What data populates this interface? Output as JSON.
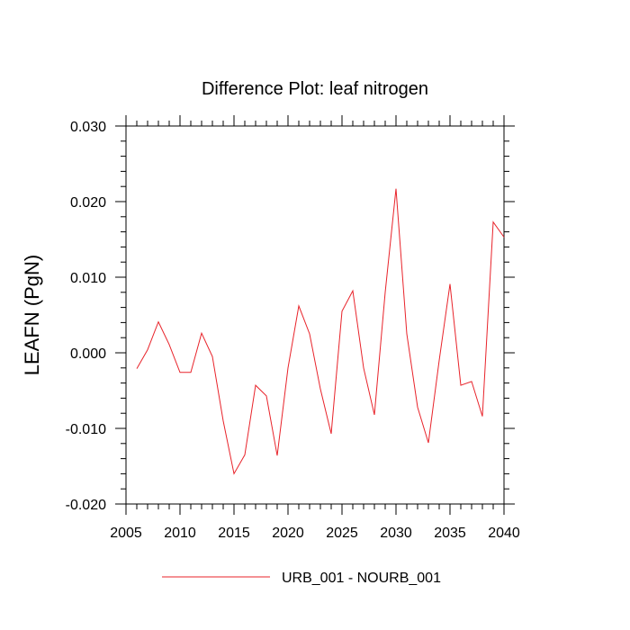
{
  "chart_data": {
    "type": "line",
    "title": "Difference Plot: leaf nitrogen",
    "xlabel": "",
    "ylabel": "LEAFN  (PgN)",
    "xlim": [
      2005,
      2040
    ],
    "ylim": [
      -0.02,
      0.03
    ],
    "x_ticks": [
      "2005",
      "2010",
      "2015",
      "2020",
      "2025",
      "2030",
      "2035",
      "2040"
    ],
    "y_ticks": [
      "-0.020",
      "-0.010",
      "0.000",
      "0.010",
      "0.020",
      "0.030"
    ],
    "grid": false,
    "legend_position": "bottom-center",
    "series": [
      {
        "name": "URB_001 - NOURB_001",
        "color": "#e8232a",
        "x": [
          2006,
          2007,
          2008,
          2009,
          2010,
          2011,
          2012,
          2013,
          2014,
          2015,
          2016,
          2017,
          2018,
          2019,
          2020,
          2021,
          2022,
          2023,
          2024,
          2025,
          2026,
          2027,
          2028,
          2029,
          2030,
          2031,
          2032,
          2033,
          2034,
          2035,
          2036,
          2037,
          2038,
          2039,
          2040
        ],
        "values": [
          -0.0021,
          0.0004,
          0.0041,
          0.0011,
          -0.0026,
          -0.0026,
          0.0026,
          -0.0005,
          -0.009,
          -0.016,
          -0.0135,
          -0.0043,
          -0.0057,
          -0.0136,
          -0.002,
          0.0062,
          0.0025,
          -0.0048,
          -0.0107,
          0.0055,
          0.0082,
          -0.002,
          -0.0082,
          0.008,
          0.0217,
          0.0025,
          -0.0072,
          -0.0119,
          -0.001,
          0.0091,
          -0.0043,
          -0.0038,
          -0.0084,
          0.0173,
          0.0153
        ]
      }
    ]
  }
}
